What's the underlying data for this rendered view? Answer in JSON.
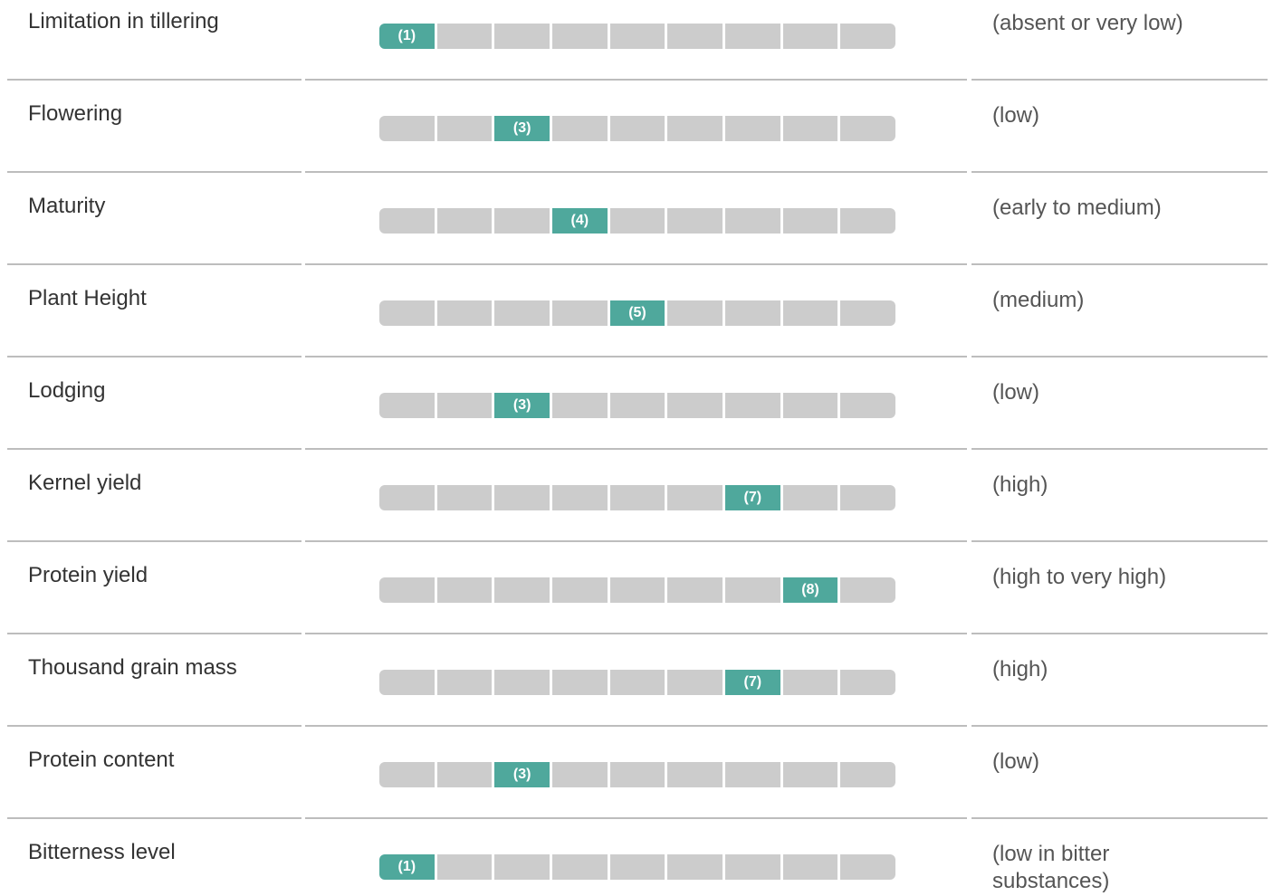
{
  "scale_range": [
    1,
    9
  ],
  "rows": [
    {
      "trait": "Limitation in tillering",
      "score": 1,
      "score_label": "(1)",
      "description": "(absent or very low)"
    },
    {
      "trait": "Flowering",
      "score": 3,
      "score_label": "(3)",
      "description": "(low)"
    },
    {
      "trait": "Maturity",
      "score": 4,
      "score_label": "(4)",
      "description": "(early to medium)"
    },
    {
      "trait": "Plant Height",
      "score": 5,
      "score_label": "(5)",
      "description": "(medium)"
    },
    {
      "trait": "Lodging",
      "score": 3,
      "score_label": "(3)",
      "description": "(low)"
    },
    {
      "trait": "Kernel yield",
      "score": 7,
      "score_label": "(7)",
      "description": "(high)"
    },
    {
      "trait": "Protein yield",
      "score": 8,
      "score_label": "(8)",
      "description": "(high to very high)"
    },
    {
      "trait": "Thousand grain mass",
      "score": 7,
      "score_label": "(7)",
      "description": "(high)"
    },
    {
      "trait": "Protein content",
      "score": 3,
      "score_label": "(3)",
      "description": "(low)"
    },
    {
      "trait": "Bitterness level",
      "score": 1,
      "score_label": "(1)",
      "description": "(low in bitter substances)"
    }
  ]
}
